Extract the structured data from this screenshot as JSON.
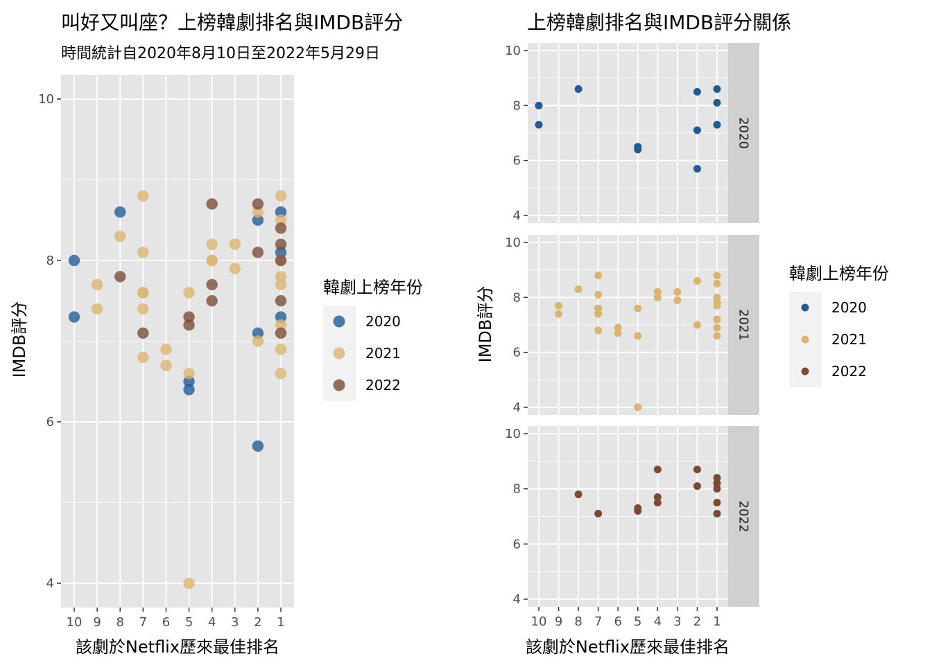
{
  "colors": {
    "2020": "#1f5b96",
    "2021": "#dbb56f",
    "2022": "#7a4a33",
    "panel_bg": "#e5e5e5",
    "grid": "#ffffff",
    "strip_bg": "#d0d0d0"
  },
  "left": {
    "title": "叫好又叫座？上榜韓劇排名與IMDB評分",
    "subtitle": "時間統計自2020年8月10日至2022年5月29日",
    "legend_title": "韓劇上榜年份",
    "legend_items": [
      "2020",
      "2021",
      "2022"
    ]
  },
  "right": {
    "title": "上榜韓劇排名與IMDB評分關係",
    "legend_title": "韓劇上榜年份",
    "legend_items": [
      "2020",
      "2021",
      "2022"
    ]
  },
  "chart_data": [
    {
      "type": "scatter",
      "title": "叫好又叫座？上榜韓劇排名與IMDB評分",
      "subtitle": "時間統計自2020年8月10日至2022年5月29日",
      "xlabel": "該劇於Netflix歷來最佳排名",
      "ylabel": "IMDB評分",
      "x_reversed": true,
      "xlim": [
        1,
        10
      ],
      "ylim": [
        4,
        10
      ],
      "x_ticks": [
        10,
        9,
        8,
        7,
        6,
        5,
        4,
        3,
        2,
        1
      ],
      "y_ticks": [
        4,
        6,
        8,
        10
      ],
      "legend_title": "韓劇上榜年份",
      "legend_position": "right",
      "series": [
        {
          "name": "2020",
          "points": [
            [
              10,
              8.0
            ],
            [
              10,
              7.3
            ],
            [
              8,
              8.6
            ],
            [
              5,
              6.5
            ],
            [
              5,
              6.4
            ],
            [
              2,
              8.5
            ],
            [
              2,
              7.1
            ],
            [
              2,
              5.7
            ],
            [
              1,
              8.6
            ],
            [
              1,
              8.1
            ],
            [
              1,
              7.3
            ]
          ]
        },
        {
          "name": "2021",
          "points": [
            [
              9,
              7.7
            ],
            [
              9,
              7.4
            ],
            [
              8,
              8.3
            ],
            [
              7,
              8.8
            ],
            [
              7,
              8.1
            ],
            [
              7,
              7.6
            ],
            [
              7,
              7.6
            ],
            [
              7,
              7.4
            ],
            [
              7,
              6.8
            ],
            [
              6,
              6.9
            ],
            [
              6,
              6.7
            ],
            [
              5,
              7.6
            ],
            [
              5,
              6.6
            ],
            [
              5,
              4.0
            ],
            [
              4,
              8.2
            ],
            [
              4,
              8.0
            ],
            [
              4,
              8.0
            ],
            [
              3,
              8.2
            ],
            [
              3,
              7.9
            ],
            [
              2,
              8.6
            ],
            [
              2,
              7.0
            ],
            [
              1,
              8.8
            ],
            [
              1,
              8.5
            ],
            [
              1,
              8.0
            ],
            [
              1,
              7.8
            ],
            [
              1,
              7.7
            ],
            [
              1,
              7.2
            ],
            [
              1,
              6.9
            ],
            [
              1,
              6.6
            ]
          ]
        },
        {
          "name": "2022",
          "points": [
            [
              8,
              7.8
            ],
            [
              7,
              7.1
            ],
            [
              5,
              7.3
            ],
            [
              5,
              7.2
            ],
            [
              4,
              8.7
            ],
            [
              4,
              7.7
            ],
            [
              4,
              7.5
            ],
            [
              2,
              8.7
            ],
            [
              2,
              8.1
            ],
            [
              1,
              8.4
            ],
            [
              1,
              8.2
            ],
            [
              1,
              8.0
            ],
            [
              1,
              7.5
            ],
            [
              1,
              7.1
            ]
          ]
        }
      ]
    },
    {
      "type": "scatter",
      "title": "上榜韓劇排名與IMDB評分關係",
      "xlabel": "該劇於Netflix歷來最佳排名",
      "ylabel": "IMDB評分",
      "x_reversed": true,
      "xlim": [
        1,
        10
      ],
      "ylim": [
        4,
        10
      ],
      "x_ticks": [
        10,
        9,
        8,
        7,
        6,
        5,
        4,
        3,
        2,
        1
      ],
      "y_ticks": [
        4,
        6,
        8,
        10
      ],
      "facets": [
        "2020",
        "2021",
        "2022"
      ],
      "legend_title": "韓劇上榜年份",
      "legend_position": "right"
    }
  ]
}
